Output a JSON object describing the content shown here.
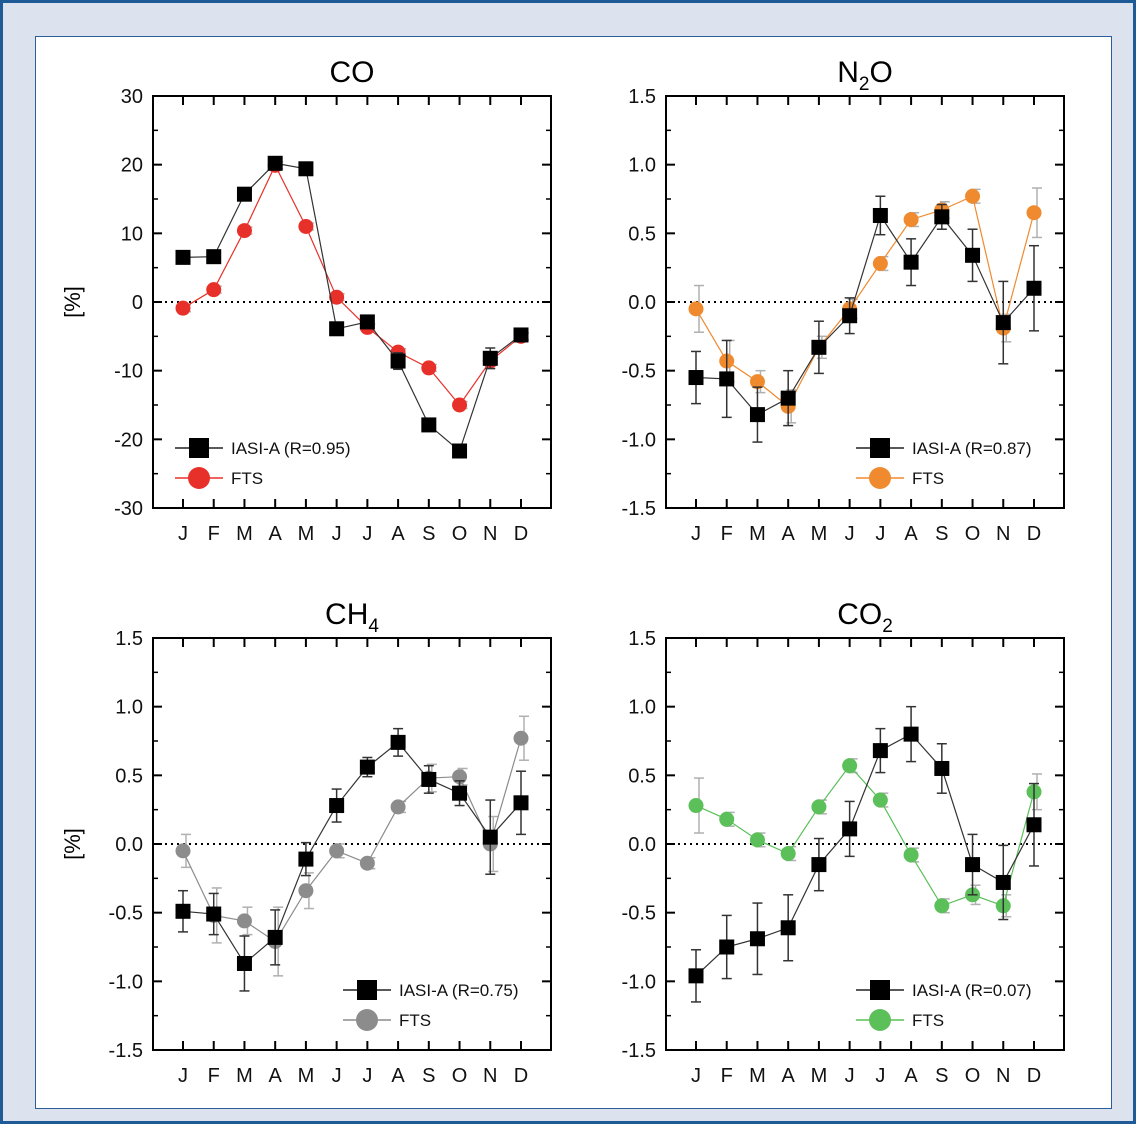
{
  "chart_data": [
    {
      "type": "line",
      "title_parts": [
        "CO",
        ""
      ],
      "ylabel": "[%]",
      "ylim": [
        -30,
        30
      ],
      "yticks": [
        "30",
        "20",
        "10",
        "0",
        "-10",
        "-20",
        "-30"
      ],
      "ytick_values": [
        30,
        20,
        10,
        0,
        -10,
        -20,
        -30
      ],
      "categories": [
        "J",
        "F",
        "M",
        "A",
        "M",
        "J",
        "J",
        "A",
        "S",
        "O",
        "N",
        "D"
      ],
      "zero_line": "dotted",
      "legend_position": "bottom-left",
      "series": [
        {
          "name": "IASI-A (R=0.95)",
          "marker": "square",
          "color": "#000000",
          "values": [
            6.5,
            6.6,
            15.7,
            20.2,
            19.4,
            -3.9,
            -2.9,
            -8.6,
            -17.9,
            -21.7,
            -8.2,
            -4.8
          ],
          "errors": [
            0.8,
            0.8,
            0.8,
            0.8,
            0.8,
            0.8,
            0.8,
            1.2,
            0.8,
            0.8,
            1.5,
            0.8
          ]
        },
        {
          "name": "FTS",
          "marker": "circle",
          "color": "#e8302a",
          "values": [
            -0.9,
            1.8,
            10.4,
            19.9,
            11.0,
            0.7,
            -3.7,
            -7.3,
            -9.6,
            -15.0,
            -8.6,
            -5.0
          ],
          "errors": [
            0.5,
            0.5,
            0.5,
            0.5,
            0.5,
            0.5,
            0.5,
            0.5,
            0.5,
            0.5,
            0.5,
            0.5
          ]
        }
      ]
    },
    {
      "type": "line",
      "title_parts": [
        "N",
        "2",
        "O"
      ],
      "ylabel": "",
      "ylim": [
        -1.5,
        1.5
      ],
      "yticks": [
        "1.5",
        "1.0",
        "0.5",
        "0.0",
        "-0.5",
        "-1.0",
        "-1.5"
      ],
      "ytick_values": [
        1.5,
        1.0,
        0.5,
        0.0,
        -0.5,
        -1.0,
        -1.5
      ],
      "categories": [
        "J",
        "F",
        "M",
        "A",
        "M",
        "J",
        "J",
        "A",
        "S",
        "O",
        "N",
        "D"
      ],
      "zero_line": "dotted",
      "legend_position": "bottom-right",
      "series": [
        {
          "name": "IASI-A (R=0.87)",
          "marker": "square",
          "color": "#000000",
          "values": [
            -0.55,
            -0.56,
            -0.82,
            -0.7,
            -0.33,
            -0.1,
            0.63,
            0.29,
            0.62,
            0.34,
            -0.15,
            0.1
          ],
          "errors": [
            0.19,
            0.28,
            0.2,
            0.2,
            0.19,
            0.13,
            0.14,
            0.17,
            0.09,
            0.19,
            0.3,
            0.31
          ]
        },
        {
          "name": "FTS",
          "marker": "circle",
          "color": "#f08a2e",
          "values": [
            -0.05,
            -0.43,
            -0.58,
            -0.76,
            -0.33,
            -0.05,
            0.28,
            0.6,
            0.67,
            0.77,
            -0.19,
            0.65
          ],
          "errors": [
            0.17,
            0.15,
            0.08,
            0.12,
            0.08,
            0.07,
            0.05,
            0.05,
            0.06,
            0.05,
            0.1,
            0.18
          ]
        }
      ]
    },
    {
      "type": "line",
      "title_parts": [
        "CH",
        "4",
        ""
      ],
      "ylabel": "[%]",
      "ylim": [
        -1.5,
        1.5
      ],
      "yticks": [
        "1.5",
        "1.0",
        "0.5",
        "0.0",
        "-0.5",
        "-1.0",
        "-1.5"
      ],
      "ytick_values": [
        1.5,
        1.0,
        0.5,
        0.0,
        -0.5,
        -1.0,
        -1.5
      ],
      "categories": [
        "J",
        "F",
        "M",
        "A",
        "M",
        "J",
        "J",
        "A",
        "S",
        "O",
        "N",
        "D"
      ],
      "zero_line": "dotted",
      "legend_position": "bottom-right",
      "series": [
        {
          "name": "IASI-A (R=0.75)",
          "marker": "square",
          "color": "#000000",
          "values": [
            -0.49,
            -0.51,
            -0.87,
            -0.68,
            -0.11,
            0.28,
            0.56,
            0.74,
            0.47,
            0.37,
            0.05,
            0.3
          ],
          "errors": [
            0.15,
            0.15,
            0.2,
            0.2,
            0.12,
            0.12,
            0.07,
            0.1,
            0.1,
            0.09,
            0.27,
            0.23
          ]
        },
        {
          "name": "FTS",
          "marker": "circle",
          "color": "#8c8c8c",
          "values": [
            -0.05,
            -0.52,
            -0.56,
            -0.71,
            -0.34,
            -0.05,
            -0.14,
            0.27,
            0.48,
            0.49,
            0.0,
            0.77
          ],
          "errors": [
            0.12,
            0.2,
            0.1,
            0.25,
            0.13,
            0.05,
            0.04,
            0.04,
            0.1,
            0.06,
            0.2,
            0.16
          ]
        }
      ]
    },
    {
      "type": "line",
      "title_parts": [
        "CO",
        "2",
        ""
      ],
      "ylabel": "",
      "ylim": [
        -1.5,
        1.5
      ],
      "yticks": [
        "1.5",
        "1.0",
        "0.5",
        "0.0",
        "-0.5",
        "-1.0",
        "-1.5"
      ],
      "ytick_values": [
        1.5,
        1.0,
        0.5,
        0.0,
        -0.5,
        -1.0,
        -1.5
      ],
      "categories": [
        "J",
        "F",
        "M",
        "A",
        "M",
        "J",
        "J",
        "A",
        "S",
        "O",
        "N",
        "D"
      ],
      "zero_line": "dotted",
      "legend_position": "bottom-right",
      "series": [
        {
          "name": "IASI-A (R=0.07)",
          "marker": "square",
          "color": "#000000",
          "values": [
            -0.96,
            -0.75,
            -0.69,
            -0.61,
            -0.15,
            0.11,
            0.68,
            0.8,
            0.55,
            -0.15,
            -0.28,
            0.14
          ],
          "errors": [
            0.19,
            0.23,
            0.26,
            0.24,
            0.19,
            0.2,
            0.16,
            0.2,
            0.18,
            0.22,
            0.27,
            0.3
          ]
        },
        {
          "name": "FTS",
          "marker": "circle",
          "color": "#5bc05a",
          "values": [
            0.28,
            0.18,
            0.03,
            -0.07,
            0.27,
            0.57,
            0.32,
            -0.08,
            -0.45,
            -0.37,
            -0.45,
            0.38
          ],
          "errors": [
            0.2,
            0.05,
            0.05,
            0.05,
            0.05,
            0.05,
            0.05,
            0.05,
            0.05,
            0.07,
            0.08,
            0.13
          ]
        }
      ]
    }
  ]
}
